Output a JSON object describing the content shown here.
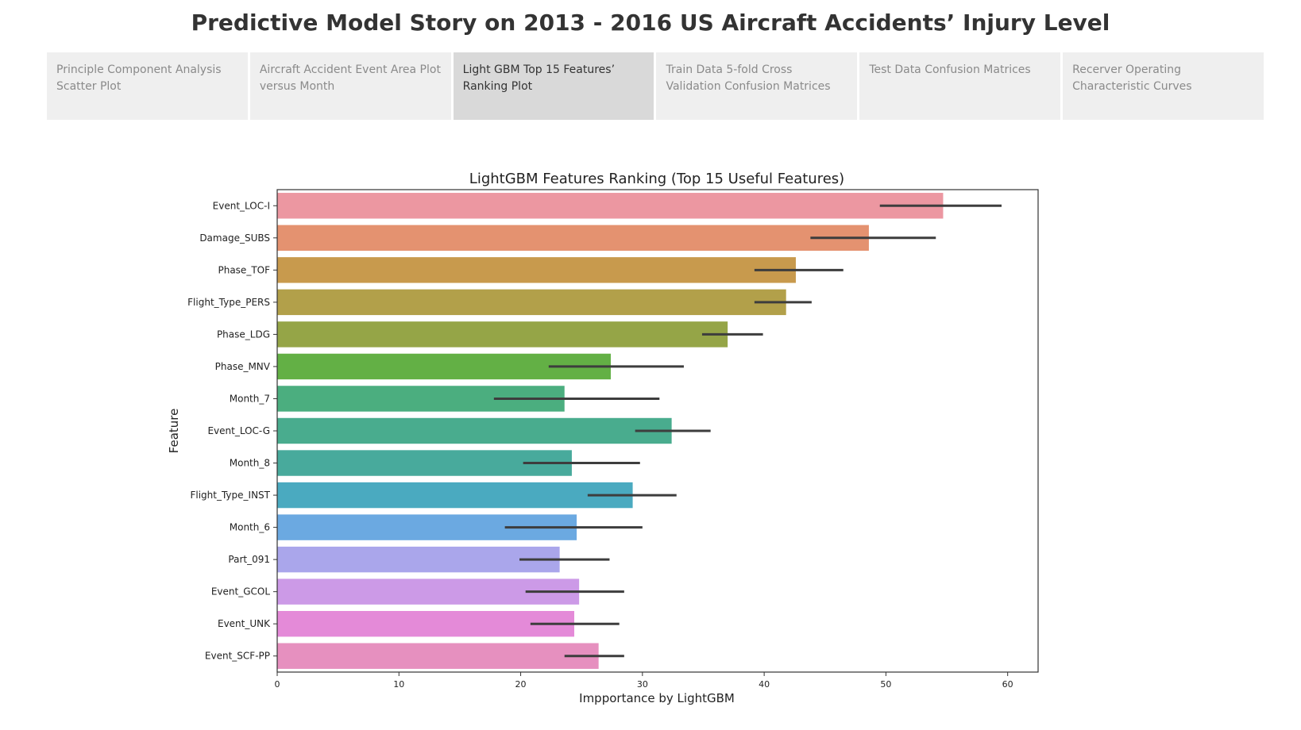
{
  "story": {
    "title": "Predictive Model Story on 2013 - 2016 US Aircraft Accidents’  Injury Level",
    "tabs": [
      {
        "label": "Principle Component Analysis Scatter Plot",
        "active": false
      },
      {
        "label": "Aircraft Accident Event Area Plot versus Month",
        "active": false
      },
      {
        "label": "Light GBM Top 15 Features’ Ranking Plot",
        "active": true
      },
      {
        "label": "Train Data 5-fold Cross Validation Confusion Matrices",
        "active": false
      },
      {
        "label": "Test Data Confusion Matrices",
        "active": false
      },
      {
        "label": "Recerver Operating Characteristic Curves",
        "active": false
      }
    ]
  },
  "chart_data": {
    "type": "bar",
    "orientation": "horizontal",
    "title": "LightGBM Features Ranking (Top 15 Useful Features)",
    "xlabel": "Impportance by LightGBM",
    "ylabel": "Feature",
    "xlim": [
      0,
      62.5
    ],
    "xticks": [
      0,
      10,
      20,
      30,
      40,
      50,
      60
    ],
    "grid": false,
    "categories": [
      "Event_LOC-I",
      "Damage_SUBS",
      "Phase_TOF",
      "Flight_Type_PERS",
      "Phase_LDG",
      "Phase_MNV",
      "Month_7",
      "Event_LOC-G",
      "Month_8",
      "Flight_Type_INST",
      "Month_6",
      "Part_091",
      "Event_GCOL",
      "Event_UNK",
      "Event_SCF-PP"
    ],
    "values": [
      54.7,
      48.6,
      42.6,
      41.8,
      37.0,
      27.4,
      23.6,
      32.4,
      24.2,
      29.2,
      24.6,
      23.2,
      24.8,
      24.4,
      26.4
    ],
    "error_low": [
      49.5,
      43.8,
      39.2,
      39.2,
      34.9,
      22.3,
      17.8,
      29.4,
      20.2,
      25.5,
      18.7,
      19.9,
      20.4,
      20.8,
      23.6
    ],
    "error_high": [
      59.5,
      54.1,
      46.5,
      43.9,
      39.9,
      33.4,
      31.4,
      35.6,
      29.8,
      32.8,
      30.0,
      27.3,
      28.5,
      28.1,
      28.5
    ],
    "colors": [
      "#ec97a1",
      "#e49270",
      "#c89a4d",
      "#b2a04a",
      "#95a547",
      "#63b045",
      "#4bae7f",
      "#49ac8e",
      "#48aa9c",
      "#4aaac0",
      "#6ba9e1",
      "#aaa6eb",
      "#cc9ae7",
      "#e48ad8",
      "#e690bf"
    ]
  }
}
